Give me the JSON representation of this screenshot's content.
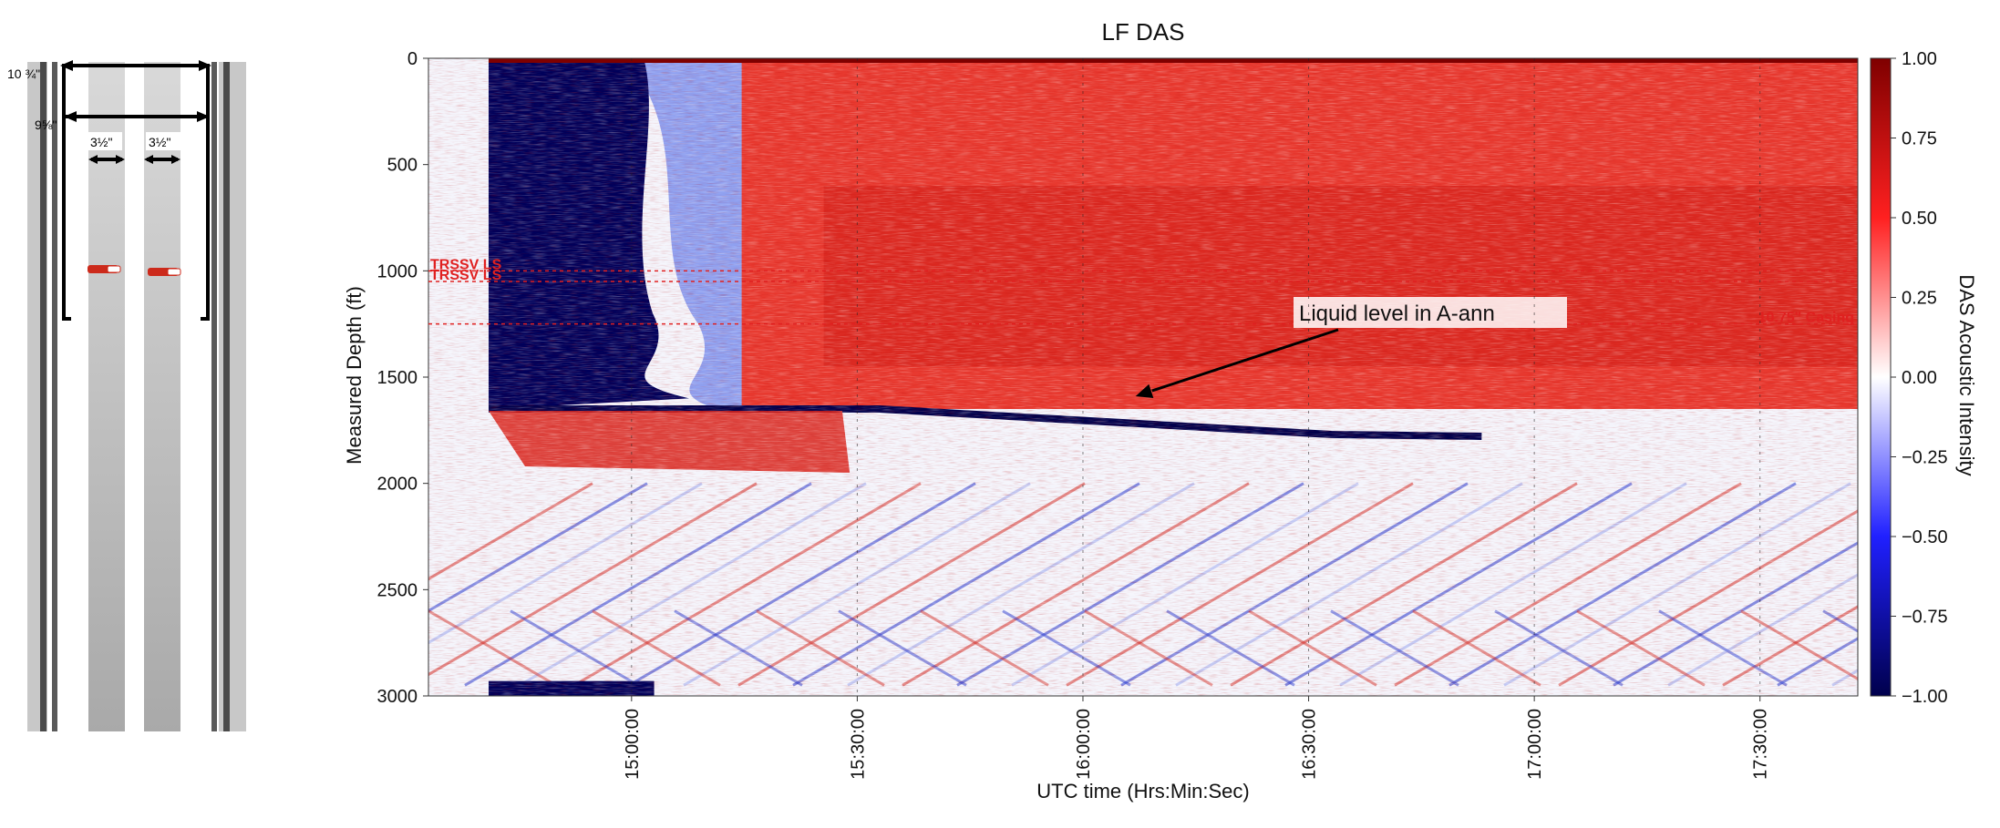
{
  "wellbore": {
    "outer_casing_label": "10 ¾\"",
    "inner_casing_label": "9⅝\"",
    "tubing_left_label": "3½\"",
    "tubing_right_label": "3½\""
  },
  "chart_data": {
    "type": "heatmap",
    "title": "LF DAS",
    "xlabel": "UTC time (Hrs:Min:Sec)",
    "ylabel": "Measured Depth (ft)",
    "colorbar_label": "DAS Acoustic Intensity",
    "x_ticks": [
      "15:00:00",
      "15:30:00",
      "16:00:00",
      "16:30:00",
      "17:00:00",
      "17:30:00"
    ],
    "x_range": [
      "14:33:00",
      "17:43:00"
    ],
    "y_ticks": [
      0,
      500,
      1000,
      1500,
      2000,
      2500,
      3000
    ],
    "ylim": [
      3000,
      0
    ],
    "colorbar_ticks": [
      "1.00",
      "0.75",
      "0.50",
      "0.25",
      "0.00",
      "−0.25",
      "−0.50",
      "−0.75",
      "−1.00"
    ],
    "colorbar_range": [
      -1,
      1
    ],
    "colormap": "seismic",
    "colors": {
      "high": "#7f0000",
      "mid": "#ffffff",
      "low": "#00004c"
    },
    "depth_markers": [
      {
        "label": "TRSSV LS",
        "depth_ft": 1000
      },
      {
        "label": "TRSSV LS",
        "depth_ft": 1050
      },
      {
        "label": "10.75\" Casing",
        "depth_ft": 1250
      }
    ],
    "annotation": {
      "text": "Liquid level in A-ann",
      "points_to_time": "16:07:00",
      "points_to_depth_ft": 1590
    },
    "liquid_level_depth_ft": 1650
  }
}
